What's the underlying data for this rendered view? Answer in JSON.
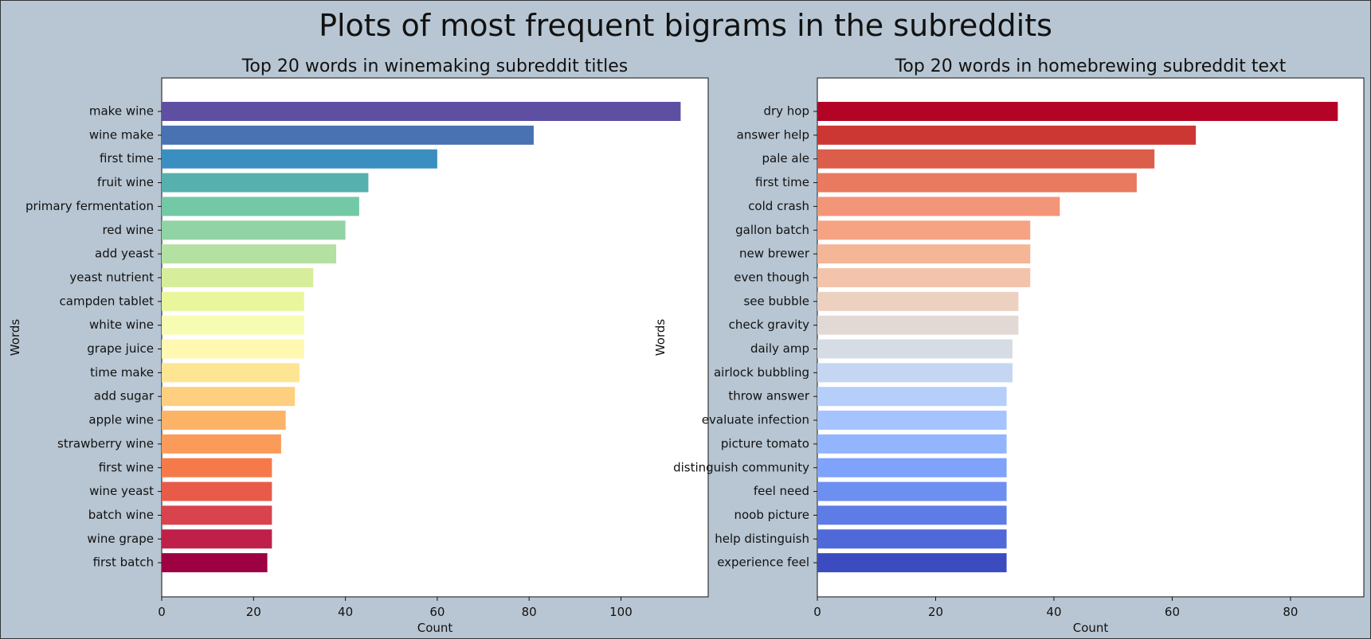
{
  "page": {
    "suptitle": "Plots of most frequent bigrams in the subreddits"
  },
  "chart_data": [
    {
      "type": "bar",
      "orientation": "horizontal",
      "title": "Top 20 words in winemaking subreddit titles",
      "xlabel": "Count",
      "ylabel": "Words",
      "xlim": [
        0,
        119
      ],
      "xticks": [
        0,
        20,
        40,
        60,
        80,
        100
      ],
      "categories": [
        "make wine",
        "wine make",
        "first time",
        "fruit wine",
        "primary fermentation",
        "red wine",
        "add yeast",
        "yeast nutrient",
        "campden tablet",
        "white wine",
        "grape juice",
        "time make",
        "add sugar",
        "apple wine",
        "strawberry wine",
        "first wine",
        "wine yeast",
        "batch wine",
        "wine grape",
        "first batch"
      ],
      "values": [
        113,
        81,
        60,
        45,
        43,
        40,
        38,
        33,
        31,
        31,
        31,
        30,
        29,
        27,
        26,
        24,
        24,
        24,
        24,
        23
      ],
      "colors": [
        "#5e4fa2",
        "#4872b1",
        "#3a8fc0",
        "#56b0ad",
        "#73c9a6",
        "#91d3a4",
        "#b4e0a2",
        "#d6ee9b",
        "#eaf69c",
        "#f7fcb3",
        "#fff8b0",
        "#fee593",
        "#fecf7f",
        "#fdb366",
        "#fb9b5a",
        "#f67a49",
        "#e85b49",
        "#d8434e",
        "#bf2049",
        "#9e0142"
      ],
      "grid": false
    },
    {
      "type": "bar",
      "orientation": "horizontal",
      "title": "Top 20 words in homebrewing subreddit text",
      "xlabel": "Count",
      "ylabel": "Words",
      "xlim": [
        0,
        92.4
      ],
      "xticks": [
        0,
        20,
        40,
        60,
        80
      ],
      "categories": [
        "dry hop",
        "answer help",
        "pale ale",
        "first time",
        "cold crash",
        "gallon batch",
        "new brewer",
        "even though",
        "see bubble",
        "check gravity",
        "daily amp",
        "airlock bubbling",
        "throw answer",
        "evaluate infection",
        "picture tomato",
        "distinguish community",
        "feel need",
        "noob picture",
        "help distinguish",
        "experience feel"
      ],
      "values": [
        88,
        64,
        57,
        54,
        41,
        36,
        36,
        36,
        34,
        34,
        33,
        33,
        32,
        32,
        32,
        32,
        32,
        32,
        32,
        32
      ],
      "colors": [
        "#b40426",
        "#cc3734",
        "#dc5d4a",
        "#e97a60",
        "#f39578",
        "#f5a383",
        "#f5b597",
        "#f3c4ab",
        "#ecd1c1",
        "#e2d9d5",
        "#d6dce4",
        "#c5d6f2",
        "#b6cefa",
        "#a5c3fe",
        "#93b5fe",
        "#7fa2fb",
        "#6d8ff2",
        "#5d7ce6",
        "#4f69d9",
        "#3b4cc0"
      ],
      "grid": false
    }
  ]
}
